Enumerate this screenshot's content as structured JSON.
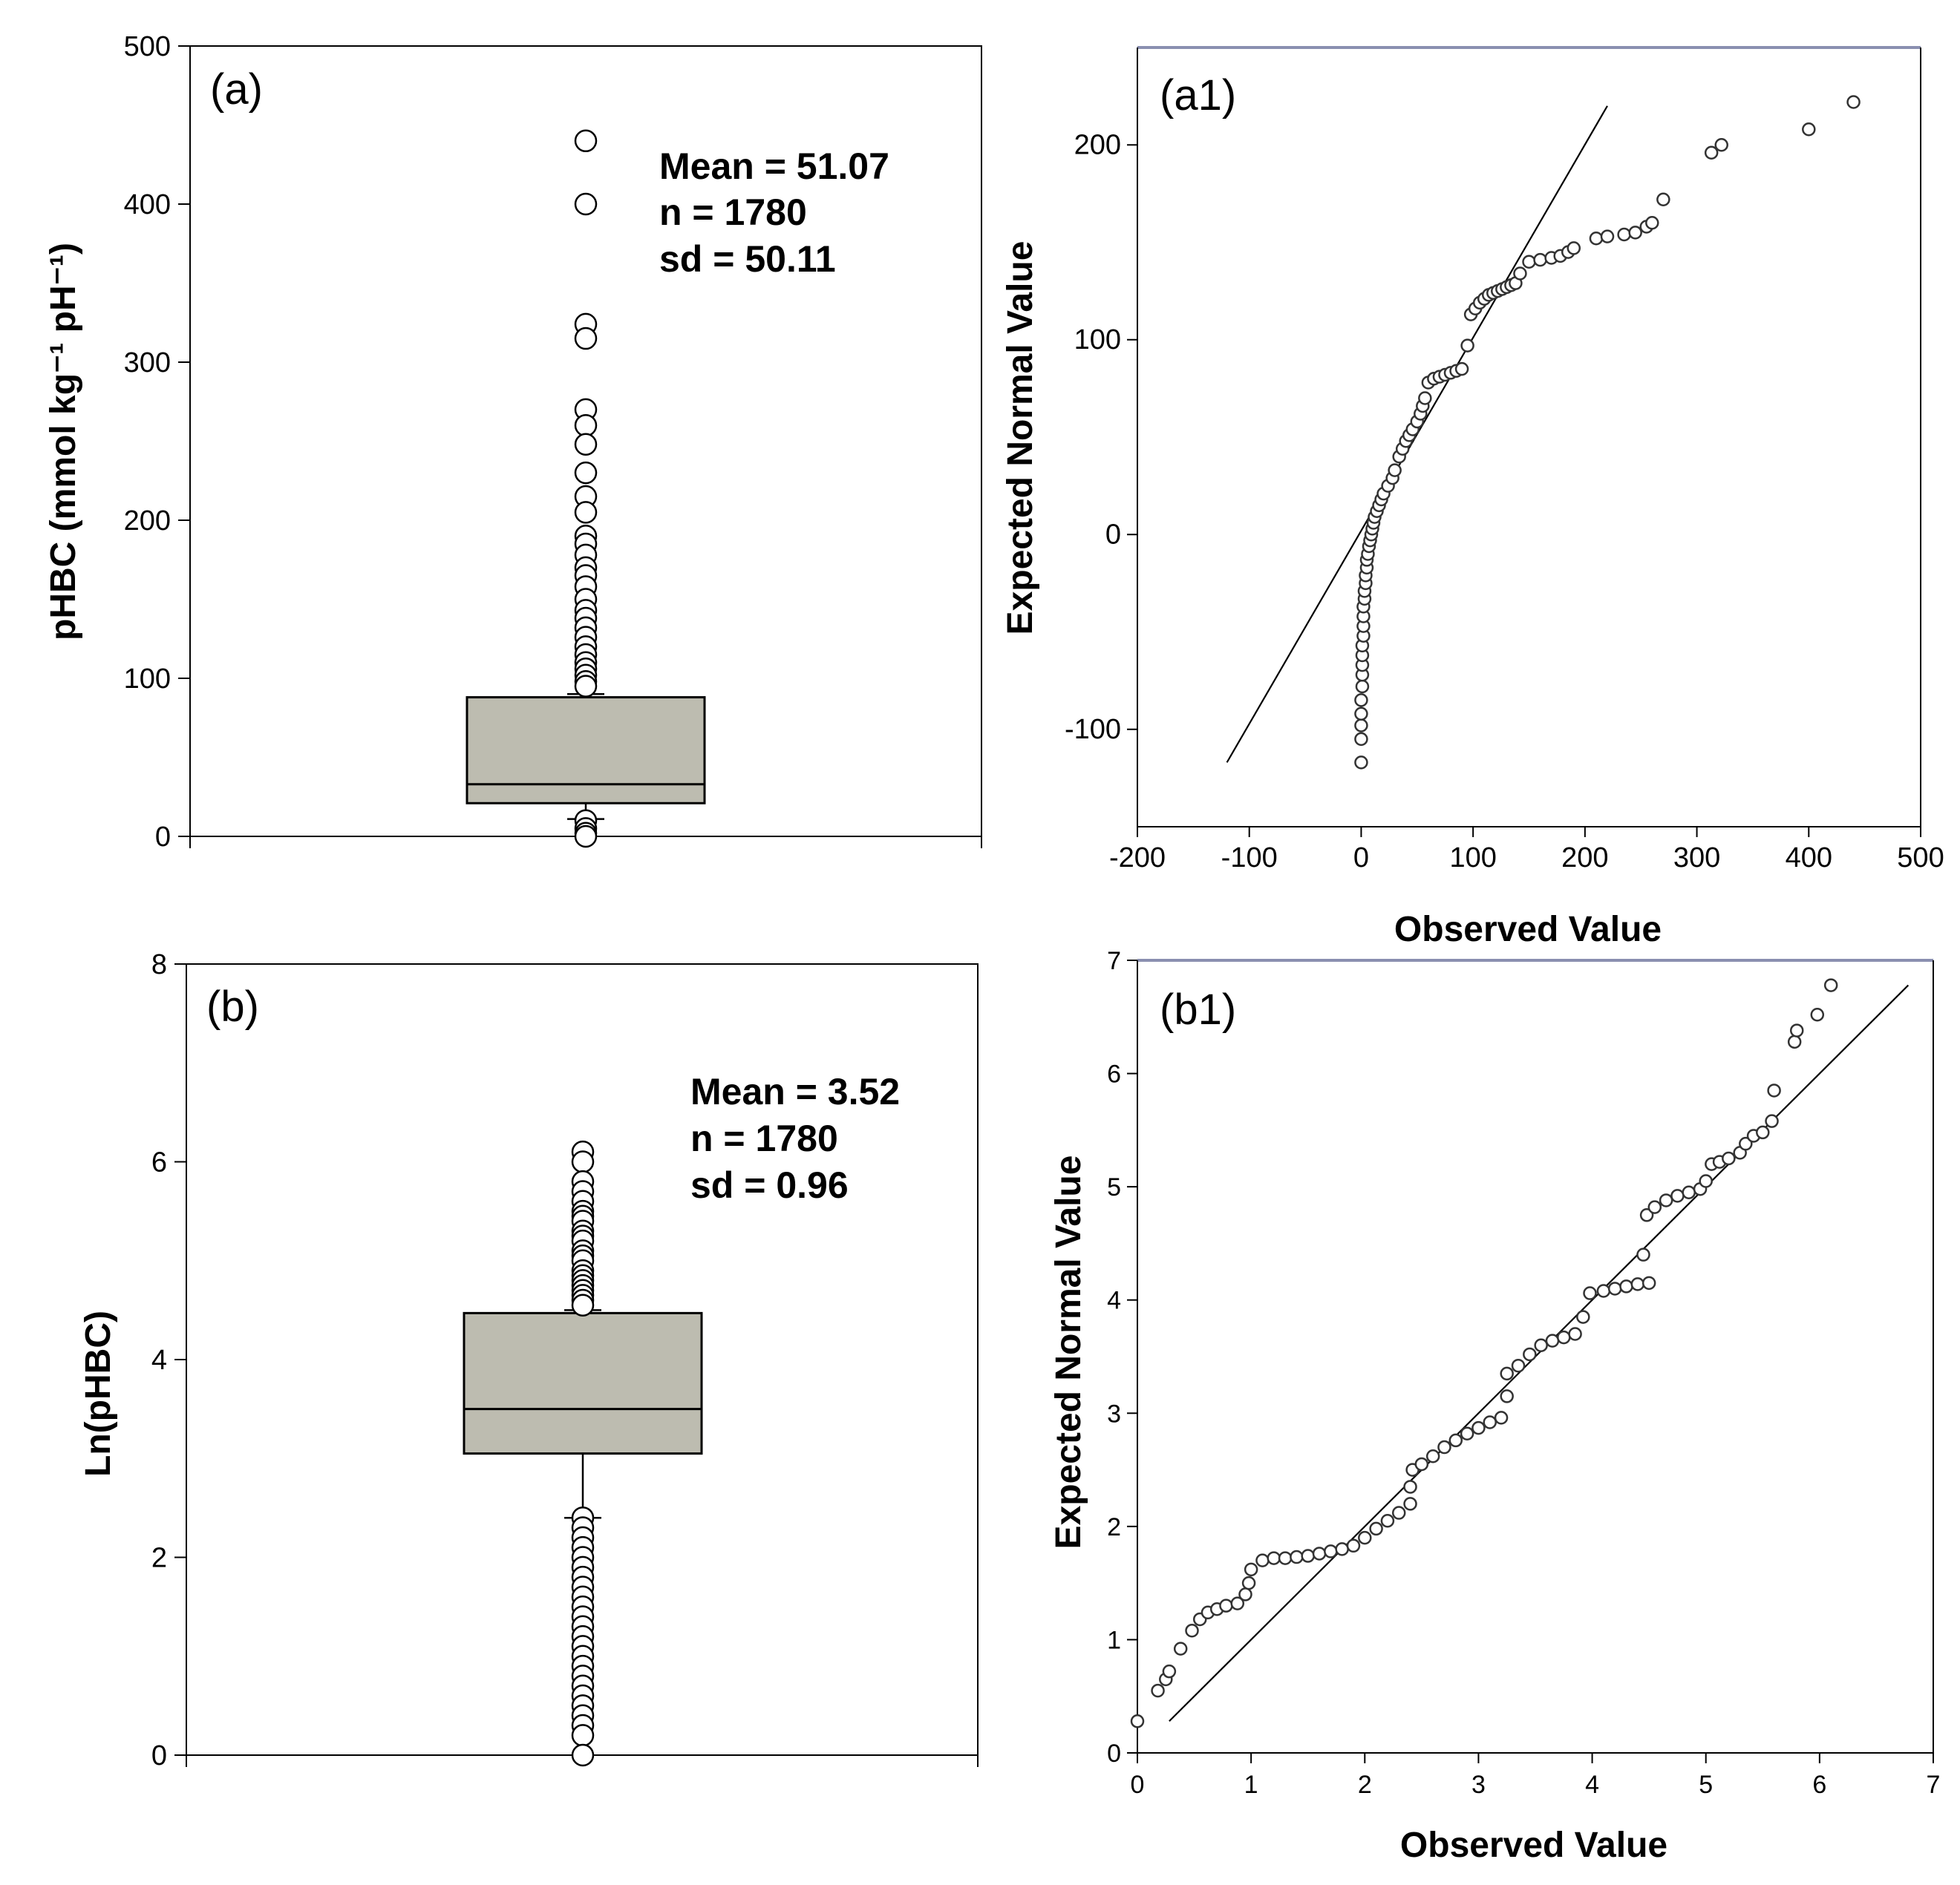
{
  "chart_data": [
    {
      "id": "a",
      "type": "box",
      "panel_label": "(a)",
      "ylabel": "pHBC (mmol kg⁻¹ pH⁻¹)",
      "ylim": [
        0,
        500
      ],
      "yticks": [
        0,
        100,
        200,
        300,
        400,
        500
      ],
      "stats": {
        "mean": "Mean = 51.07",
        "n": "n = 1780",
        "sd": "sd = 50.11"
      },
      "box": {
        "q1": 21,
        "median": 33,
        "q3": 88,
        "whisker_low": 11,
        "whisker_high": 90
      },
      "outliers": [
        440,
        400,
        324,
        315,
        270,
        260,
        248,
        230,
        215,
        205,
        190,
        185,
        178,
        170,
        165,
        158,
        150,
        143,
        138,
        132,
        126,
        120,
        115,
        110,
        106,
        102,
        98,
        95,
        10,
        5,
        2,
        0
      ]
    },
    {
      "id": "a1",
      "type": "scatter",
      "panel_label": "(a1)",
      "xlabel": "Observed Value",
      "ylabel": "Expected Normal Value",
      "xlim": [
        -200,
        500
      ],
      "ylim": [
        -150,
        250
      ],
      "xticks": [
        -200,
        -100,
        0,
        100,
        200,
        300,
        400,
        500
      ],
      "yticks": [
        -100,
        0,
        100,
        200
      ],
      "reference_line": {
        "x": [
          -120,
          220
        ],
        "y": [
          -117,
          220
        ]
      },
      "points": [
        [
          0,
          -117
        ],
        [
          0,
          -105
        ],
        [
          0,
          -98
        ],
        [
          0,
          -92
        ],
        [
          0,
          -85
        ],
        [
          1,
          -78
        ],
        [
          1,
          -72
        ],
        [
          1,
          -67
        ],
        [
          1,
          -62
        ],
        [
          1,
          -57
        ],
        [
          2,
          -52
        ],
        [
          2,
          -47
        ],
        [
          2,
          -42
        ],
        [
          2,
          -37
        ],
        [
          3,
          -33
        ],
        [
          3,
          -29
        ],
        [
          4,
          -25
        ],
        [
          4,
          -21
        ],
        [
          5,
          -17
        ],
        [
          5,
          -13
        ],
        [
          6,
          -10
        ],
        [
          7,
          -6
        ],
        [
          8,
          -3
        ],
        [
          9,
          0
        ],
        [
          10,
          3
        ],
        [
          11,
          6
        ],
        [
          12,
          9
        ],
        [
          14,
          12
        ],
        [
          16,
          15
        ],
        [
          18,
          18
        ],
        [
          20,
          21
        ],
        [
          24,
          25
        ],
        [
          28,
          29
        ],
        [
          30,
          33
        ],
        [
          34,
          40
        ],
        [
          37,
          44
        ],
        [
          40,
          48
        ],
        [
          43,
          51
        ],
        [
          46,
          54
        ],
        [
          50,
          58
        ],
        [
          53,
          62
        ],
        [
          55,
          66
        ],
        [
          57,
          70
        ],
        [
          60,
          78
        ],
        [
          65,
          80
        ],
        [
          70,
          81
        ],
        [
          75,
          82
        ],
        [
          80,
          83
        ],
        [
          85,
          84
        ],
        [
          90,
          85
        ],
        [
          95,
          97
        ],
        [
          98,
          113
        ],
        [
          102,
          116
        ],
        [
          106,
          119
        ],
        [
          110,
          121
        ],
        [
          114,
          123
        ],
        [
          118,
          124
        ],
        [
          122,
          125
        ],
        [
          126,
          126
        ],
        [
          130,
          127
        ],
        [
          134,
          128
        ],
        [
          138,
          129
        ],
        [
          142,
          134
        ],
        [
          150,
          140
        ],
        [
          160,
          141
        ],
        [
          170,
          142
        ],
        [
          178,
          143
        ],
        [
          185,
          145
        ],
        [
          190,
          147
        ],
        [
          210,
          152
        ],
        [
          220,
          153
        ],
        [
          235,
          154
        ],
        [
          245,
          155
        ],
        [
          255,
          158
        ],
        [
          260,
          160
        ],
        [
          270,
          172
        ],
        [
          313,
          196
        ],
        [
          322,
          200
        ],
        [
          400,
          208
        ],
        [
          440,
          222
        ]
      ]
    },
    {
      "id": "b",
      "type": "box",
      "panel_label": "(b)",
      "ylabel": "Ln(pHBC)",
      "ylim": [
        0,
        8
      ],
      "yticks": [
        0,
        2,
        4,
        6,
        8
      ],
      "stats": {
        "mean": "Mean = 3.52",
        "n": "n = 1780",
        "sd": "sd = 0.96"
      },
      "box": {
        "q1": 3.05,
        "median": 3.5,
        "q3": 4.47,
        "whisker_low": 2.4,
        "whisker_high": 4.5
      },
      "outliers": [
        6.1,
        6.0,
        5.8,
        5.7,
        5.6,
        5.5,
        5.45,
        5.4,
        5.3,
        5.25,
        5.2,
        5.1,
        5.05,
        5.0,
        4.9,
        4.85,
        4.8,
        4.75,
        4.7,
        4.65,
        4.6,
        4.55,
        2.4,
        2.3,
        2.2,
        2.1,
        2.0,
        1.9,
        1.8,
        1.7,
        1.6,
        1.5,
        1.4,
        1.3,
        1.2,
        1.1,
        1.0,
        0.9,
        0.8,
        0.7,
        0.6,
        0.5,
        0.4,
        0.3,
        0.2,
        0.0
      ]
    },
    {
      "id": "b1",
      "type": "scatter",
      "panel_label": "(b1)",
      "xlabel": "Observed Value",
      "ylabel": "Expected Normal Value",
      "xlim": [
        0,
        7
      ],
      "ylim": [
        0,
        7
      ],
      "xticks": [
        0,
        1,
        2,
        3,
        4,
        5,
        6,
        7
      ],
      "yticks": [
        0,
        1,
        2,
        3,
        4,
        5,
        6,
        7
      ],
      "reference_line": {
        "x": [
          0.28,
          6.78
        ],
        "y": [
          0.28,
          6.78
        ]
      },
      "points": [
        [
          0.0,
          0.28
        ],
        [
          0.18,
          0.55
        ],
        [
          0.25,
          0.65
        ],
        [
          0.28,
          0.72
        ],
        [
          0.38,
          0.92
        ],
        [
          0.48,
          1.08
        ],
        [
          0.55,
          1.18
        ],
        [
          0.62,
          1.24
        ],
        [
          0.7,
          1.27
        ],
        [
          0.78,
          1.3
        ],
        [
          0.88,
          1.32
        ],
        [
          0.95,
          1.4
        ],
        [
          0.98,
          1.5
        ],
        [
          1.0,
          1.62
        ],
        [
          1.1,
          1.7
        ],
        [
          1.2,
          1.72
        ],
        [
          1.3,
          1.72
        ],
        [
          1.4,
          1.73
        ],
        [
          1.5,
          1.74
        ],
        [
          1.6,
          1.76
        ],
        [
          1.7,
          1.78
        ],
        [
          1.8,
          1.8
        ],
        [
          1.9,
          1.83
        ],
        [
          2.0,
          1.9
        ],
        [
          2.1,
          1.98
        ],
        [
          2.2,
          2.05
        ],
        [
          2.3,
          2.12
        ],
        [
          2.4,
          2.2
        ],
        [
          2.4,
          2.35
        ],
        [
          2.42,
          2.5
        ],
        [
          2.5,
          2.55
        ],
        [
          2.6,
          2.62
        ],
        [
          2.7,
          2.7
        ],
        [
          2.8,
          2.76
        ],
        [
          2.9,
          2.82
        ],
        [
          3.0,
          2.87
        ],
        [
          3.1,
          2.92
        ],
        [
          3.2,
          2.96
        ],
        [
          3.25,
          3.15
        ],
        [
          3.25,
          3.35
        ],
        [
          3.35,
          3.42
        ],
        [
          3.45,
          3.52
        ],
        [
          3.55,
          3.6
        ],
        [
          3.65,
          3.64
        ],
        [
          3.75,
          3.67
        ],
        [
          3.85,
          3.7
        ],
        [
          3.92,
          3.85
        ],
        [
          3.98,
          4.06
        ],
        [
          4.1,
          4.08
        ],
        [
          4.2,
          4.1
        ],
        [
          4.3,
          4.12
        ],
        [
          4.4,
          4.14
        ],
        [
          4.5,
          4.15
        ],
        [
          4.45,
          4.4
        ],
        [
          4.48,
          4.75
        ],
        [
          4.55,
          4.82
        ],
        [
          4.65,
          4.88
        ],
        [
          4.75,
          4.92
        ],
        [
          4.85,
          4.95
        ],
        [
          4.95,
          4.98
        ],
        [
          5.0,
          5.05
        ],
        [
          5.05,
          5.2
        ],
        [
          5.12,
          5.22
        ],
        [
          5.2,
          5.25
        ],
        [
          5.3,
          5.3
        ],
        [
          5.35,
          5.38
        ],
        [
          5.42,
          5.45
        ],
        [
          5.5,
          5.48
        ],
        [
          5.58,
          5.58
        ],
        [
          5.6,
          5.85
        ],
        [
          5.78,
          6.28
        ],
        [
          5.8,
          6.38
        ],
        [
          5.98,
          6.52
        ],
        [
          6.1,
          6.78
        ]
      ]
    }
  ]
}
